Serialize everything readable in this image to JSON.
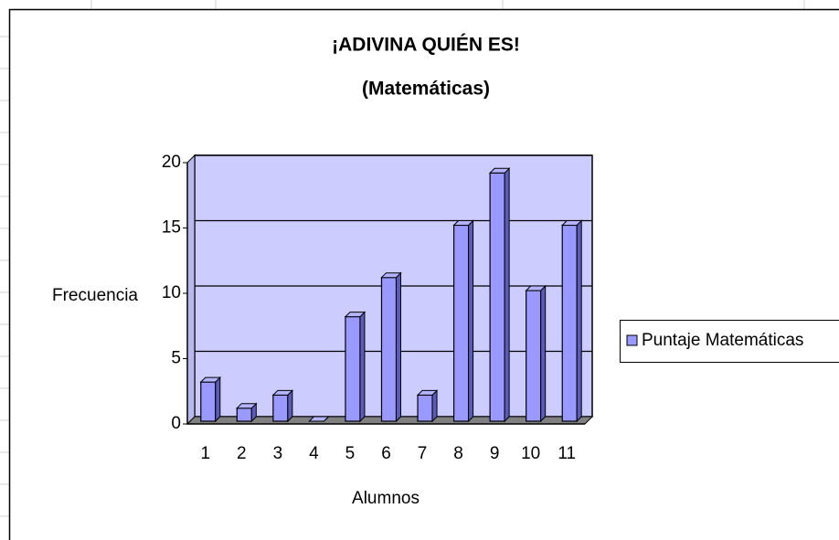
{
  "chart_data": {
    "type": "bar3d",
    "title": "¡ADIVINA QUIÉN ES!",
    "subtitle": "(Matemáticas)",
    "x_label": "Alumnos",
    "y_label": "Frecuencia",
    "categories": [
      "1",
      "2",
      "3",
      "4",
      "5",
      "6",
      "7",
      "8",
      "9",
      "10",
      "11"
    ],
    "series": [
      {
        "name": "Puntaje Matemáticas",
        "color": "#9999ff",
        "values": [
          3,
          1,
          2,
          0,
          8,
          11,
          2,
          15,
          19,
          10,
          15
        ]
      }
    ],
    "ylim": [
      0,
      20
    ],
    "yticks": [
      0,
      5,
      10,
      15,
      20
    ],
    "grid": true,
    "legend": "right"
  }
}
